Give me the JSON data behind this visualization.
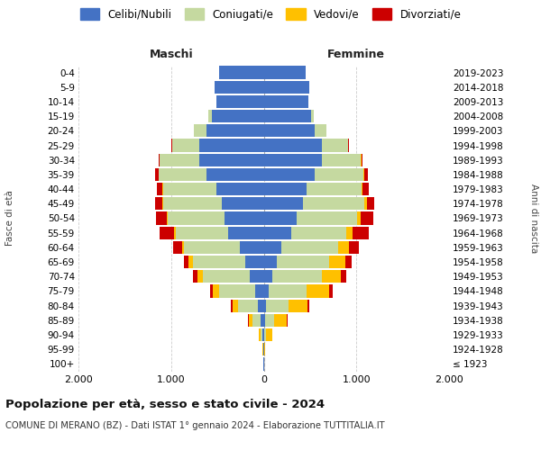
{
  "age_groups": [
    "100+",
    "95-99",
    "90-94",
    "85-89",
    "80-84",
    "75-79",
    "70-74",
    "65-69",
    "60-64",
    "55-59",
    "50-54",
    "45-49",
    "40-44",
    "35-39",
    "30-34",
    "25-29",
    "20-24",
    "15-19",
    "10-14",
    "5-9",
    "0-4"
  ],
  "birth_years": [
    "≤ 1923",
    "1924-1928",
    "1929-1933",
    "1934-1938",
    "1939-1943",
    "1944-1948",
    "1949-1953",
    "1954-1958",
    "1959-1963",
    "1964-1968",
    "1969-1973",
    "1974-1978",
    "1979-1983",
    "1984-1988",
    "1989-1993",
    "1994-1998",
    "1999-2003",
    "2004-2008",
    "2009-2013",
    "2014-2018",
    "2019-2023"
  ],
  "maschi": {
    "celibi": [
      2,
      5,
      15,
      35,
      60,
      90,
      150,
      200,
      260,
      380,
      420,
      450,
      510,
      620,
      700,
      700,
      620,
      560,
      510,
      530,
      480
    ],
    "coniugati": [
      0,
      3,
      20,
      90,
      220,
      390,
      510,
      560,
      600,
      570,
      620,
      640,
      580,
      510,
      420,
      290,
      130,
      35,
      0,
      0,
      0
    ],
    "vedovi": [
      0,
      2,
      15,
      35,
      60,
      70,
      60,
      50,
      25,
      15,
      10,
      8,
      5,
      3,
      2,
      1,
      1,
      0,
      0,
      0,
      0
    ],
    "divorziati": [
      0,
      0,
      3,
      10,
      15,
      30,
      40,
      55,
      90,
      160,
      110,
      70,
      55,
      35,
      15,
      5,
      2,
      0,
      0,
      0,
      0
    ]
  },
  "femmine": {
    "nubili": [
      1,
      3,
      8,
      15,
      25,
      55,
      95,
      140,
      185,
      300,
      360,
      420,
      460,
      550,
      630,
      630,
      550,
      510,
      480,
      490,
      450
    ],
    "coniugate": [
      0,
      3,
      20,
      95,
      240,
      410,
      530,
      570,
      620,
      590,
      650,
      670,
      600,
      530,
      420,
      280,
      125,
      30,
      0,
      0,
      0
    ],
    "vedove": [
      0,
      10,
      60,
      140,
      210,
      240,
      210,
      175,
      115,
      70,
      40,
      20,
      10,
      5,
      2,
      1,
      0,
      0,
      0,
      0,
      0
    ],
    "divorziate": [
      0,
      0,
      4,
      10,
      18,
      35,
      55,
      65,
      110,
      175,
      130,
      85,
      60,
      35,
      15,
      5,
      2,
      0,
      0,
      0,
      0
    ]
  },
  "color_celibi": "#4472c4",
  "color_coniugati": "#c5d9a0",
  "color_vedovi": "#ffc000",
  "color_divorziati": "#cc0000",
  "xlim": 2000,
  "title": "Popolazione per età, sesso e stato civile - 2024",
  "subtitle": "COMUNE DI MERANO (BZ) - Dati ISTAT 1° gennaio 2024 - Elaborazione TUTTITALIA.IT",
  "xlabel_left": "Maschi",
  "xlabel_right": "Femmine",
  "background_color": "#ffffff",
  "grid_color": "#cccccc"
}
